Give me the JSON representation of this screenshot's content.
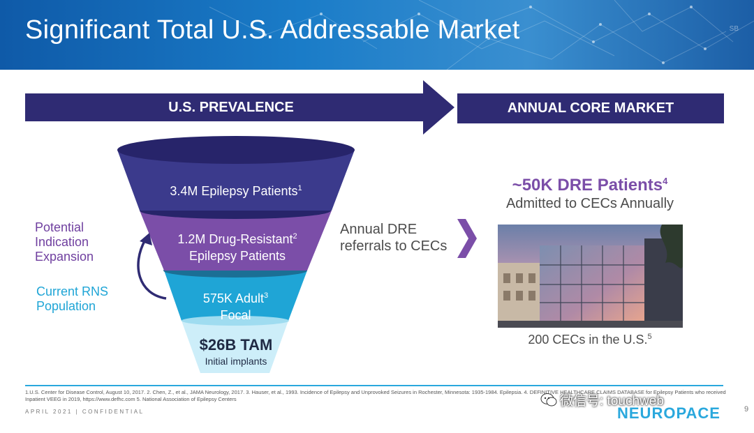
{
  "slide": {
    "title": "Significant Total U.S. Addressable Market",
    "header_mark": "SB"
  },
  "banners": {
    "left": "U.S. PREVALENCE",
    "right": "ANNUAL CORE MARKET"
  },
  "funnel": {
    "tier1": {
      "text": "3.4M Epilepsy Patients",
      "sup": "1"
    },
    "tier2": {
      "line1": "1.2M Drug-Resistant",
      "sup": "2",
      "line2": "Epilepsy Patients"
    },
    "tier3": {
      "line1": "575K Adult",
      "sup": "3",
      "line2": "Focal"
    },
    "tam": {
      "value": "$26B TAM",
      "label": "Initial implants"
    }
  },
  "side_labels": {
    "potential": "Potential Indication Expansion",
    "current": "Current RNS Population"
  },
  "referrals": "Annual DRE referrals to CECs",
  "core_market": {
    "headline": "~50K DRE Patients",
    "headline_sup": "4",
    "sub": "Admitted to CECs Annually",
    "cec_count": "200 CECs in the U.S.",
    "cec_sup": "5"
  },
  "footnotes": "1.U.S. Center for Disease Control, August 10, 2017.  2. Chen, Z., et al., JAMA Neurology, 2017.  3. Hauser, et al., 1993. Incidence of Epilepsy and Unprovoked Seizures in Rochester, Minnesota: 1935-1984. Epilepsia.  4. DEFINITIVE HEALTHCARE CLAIMS DATABASE for Epilepsy Patients who received Inpatient VEEG in 2019, https://www.defhc.com  5. National Association of Epilepsy Centers",
  "confidential": "APRIL 2021 | CONFIDENTIAL",
  "watermark": "微信号: touchweb",
  "logo": "NEUROPACE",
  "page_number": "9",
  "colors": {
    "navy": "#2f2b73",
    "purple": "#7b4ea8",
    "cyan": "#1fa5d6",
    "light_cyan": "#cdeef9"
  }
}
